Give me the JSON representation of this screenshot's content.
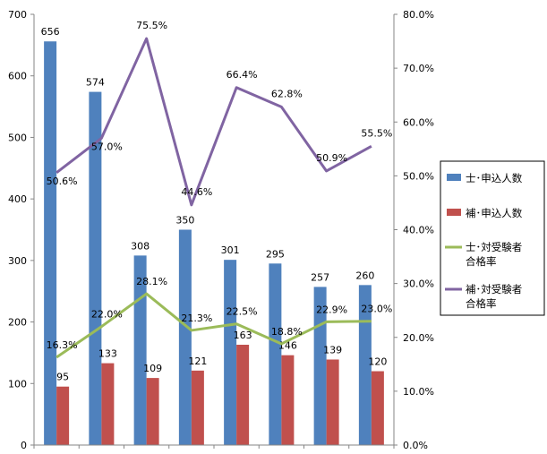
{
  "chart_data": {
    "type": "bar",
    "categories": [
      "",
      "",
      "",
      "",
      "",
      "",
      "",
      ""
    ],
    "series": [
      {
        "name": "士･申込人数",
        "type": "bar",
        "axis": "left",
        "color": "#4F81BD",
        "values": [
          656,
          574,
          308,
          350,
          301,
          295,
          257,
          260
        ],
        "labels": [
          "656",
          "574",
          "308",
          "350",
          "301",
          "295",
          "257",
          "260"
        ]
      },
      {
        "name": "補･申込人数",
        "type": "bar",
        "axis": "left",
        "color": "#C0504D",
        "values": [
          95,
          133,
          109,
          121,
          163,
          146,
          139,
          120
        ],
        "labels": [
          "95",
          "133",
          "109",
          "121",
          "163",
          "146",
          "139",
          "120"
        ]
      },
      {
        "name": "士･対受験者合格率",
        "type": "line",
        "axis": "right",
        "color": "#9BBB59",
        "values": [
          16.3,
          22.0,
          28.1,
          21.3,
          22.5,
          18.8,
          22.9,
          23.0
        ],
        "labels": [
          "16.3%",
          "22.0%",
          "28.1%",
          "21.3%",
          "22.5%",
          "18.8%",
          "22.9%",
          "23.0%"
        ]
      },
      {
        "name": "補･対受験者合格率",
        "type": "line",
        "axis": "right",
        "color": "#8064A2",
        "values": [
          50.6,
          57.0,
          75.5,
          44.6,
          66.4,
          62.8,
          50.9,
          55.5
        ],
        "labels": [
          "50.6%",
          "57.0%",
          "75.5%",
          "44.6%",
          "66.4%",
          "62.8%",
          "50.9%",
          "55.5%"
        ]
      }
    ],
    "y_left": {
      "ylim": [
        0,
        700
      ],
      "ticks": [
        "0",
        "100",
        "200",
        "300",
        "400",
        "500",
        "600",
        "700"
      ]
    },
    "y_right": {
      "ylim": [
        0,
        80
      ],
      "ticks": [
        "0.0%",
        "10.0%",
        "20.0%",
        "30.0%",
        "40.0%",
        "50.0%",
        "60.0%",
        "70.0%",
        "80.0%"
      ]
    },
    "grid": false,
    "legend": {
      "position": "right",
      "entries": [
        {
          "lines": [
            "士･申込人数"
          ],
          "kind": "bar",
          "color": "#4F81BD"
        },
        {
          "lines": [
            "補･申込人数"
          ],
          "kind": "bar",
          "color": "#C0504D"
        },
        {
          "lines": [
            "士･対受験者",
            "合格率"
          ],
          "kind": "line",
          "color": "#9BBB59"
        },
        {
          "lines": [
            "補･対受験者",
            "合格率"
          ],
          "kind": "line",
          "color": "#8064A2"
        }
      ]
    }
  }
}
